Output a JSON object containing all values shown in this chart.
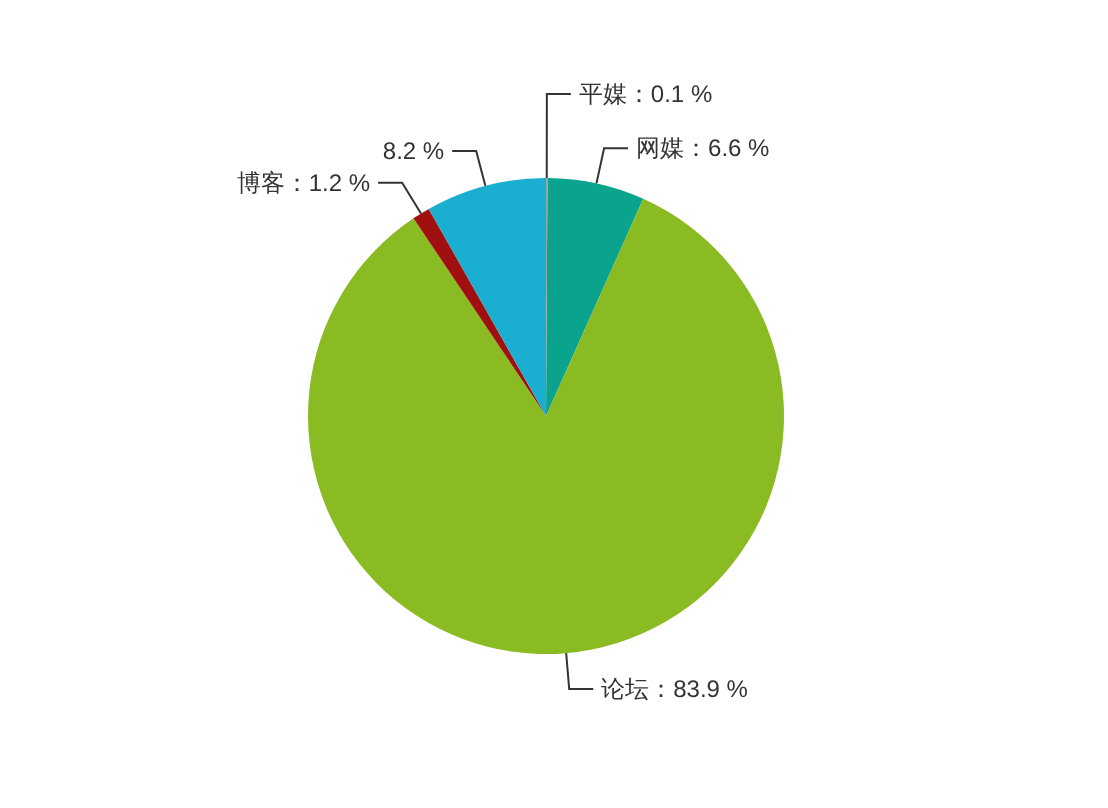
{
  "chart_data": {
    "type": "pie",
    "categories": [
      "平媒",
      "网媒",
      "论坛",
      "博客",
      null
    ],
    "values": [
      0.1,
      6.6,
      83.9,
      1.2,
      8.2
    ],
    "colors": [
      "#9aa0a6",
      "#0aa38e",
      "#8bbb22",
      "#a01010",
      "#1aaed0"
    ],
    "value_labels": [
      "0.1 %",
      "6.6 %",
      "83.9 %",
      "1.2 %",
      "8.2 %"
    ]
  }
}
